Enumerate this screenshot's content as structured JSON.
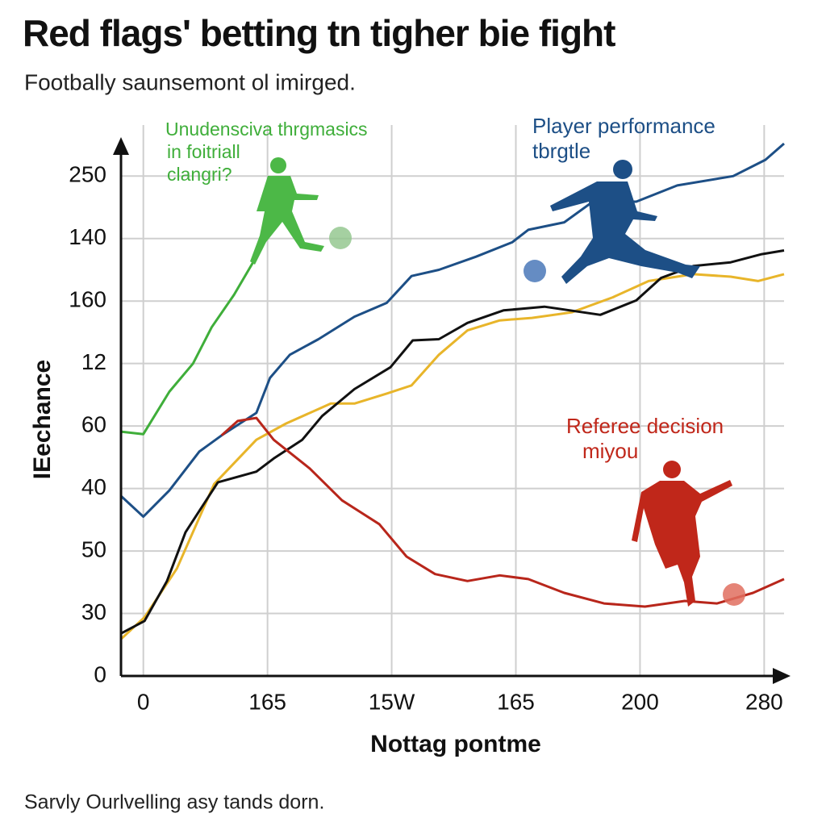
{
  "chart_data": {
    "type": "line",
    "title": "Red flags' betting tn tigher bie fight",
    "subtitle": "Footbally saunsemont ol imirged.",
    "y_label": "IEechance",
    "x_label": "Nottag pontme",
    "footer": "Sarvly Ourlvelling asy tands dorn.",
    "xlim": [
      -0.18,
      5.16
    ],
    "ylim": [
      0,
      8.52
    ],
    "xticks": [
      {
        "value": 0,
        "label": "0"
      },
      {
        "value": 1,
        "label": "165"
      },
      {
        "value": 2,
        "label": "15W"
      },
      {
        "value": 3,
        "label": "165"
      },
      {
        "value": 4,
        "label": "200"
      },
      {
        "value": 5,
        "label": "280"
      }
    ],
    "yticks": [
      {
        "value": 0,
        "label": "0"
      },
      {
        "value": 1,
        "label": "30"
      },
      {
        "value": 2,
        "label": "50"
      },
      {
        "value": 3,
        "label": "40"
      },
      {
        "value": 4,
        "label": "60"
      },
      {
        "value": 5,
        "label": "12"
      },
      {
        "value": 6,
        "label": "160"
      },
      {
        "value": 7,
        "label": "140"
      },
      {
        "value": 8,
        "label": "250"
      }
    ],
    "grid": true,
    "annotations": [
      {
        "lines": [
          "Unudenscivа thrgmasics",
          "in foitriall",
          "clangri?"
        ],
        "color": "#3fae3a"
      },
      {
        "lines": [
          "Player performance",
          "tbrgtle"
        ],
        "color": "#1d4f86"
      },
      {
        "lines": [
          "Referee decision",
          "miyou"
        ],
        "color": "#c0271a"
      }
    ],
    "series": [
      {
        "color": "#3fae3a",
        "x": [
          -0.18,
          0,
          0.21,
          0.4,
          0.55,
          0.73,
          0.91
        ],
        "values": [
          3.91,
          3.87,
          4.55,
          5.0,
          5.58,
          6.1,
          6.71
        ]
      },
      {
        "color": "#1d4f86",
        "x": [
          -0.18,
          0,
          0.21,
          0.45,
          0.63,
          0.91,
          1.02,
          1.18,
          1.41,
          1.7,
          1.96,
          2.16,
          2.38,
          2.68,
          2.97,
          3.1,
          3.39,
          3.62,
          3.97,
          4.3,
          4.75,
          5.01,
          5.16
        ],
        "values": [
          2.88,
          2.55,
          2.97,
          3.59,
          3.85,
          4.21,
          4.77,
          5.14,
          5.39,
          5.75,
          5.97,
          6.4,
          6.5,
          6.71,
          6.94,
          7.14,
          7.26,
          7.59,
          7.59,
          7.85,
          8.0,
          8.26,
          8.52
        ]
      },
      {
        "color": "#e8b52a",
        "x": [
          -0.18,
          0.01,
          0.27,
          0.57,
          0.91,
          1.15,
          1.51,
          1.7,
          1.96,
          2.16,
          2.38,
          2.61,
          2.87,
          3.13,
          3.45,
          3.78,
          4.07,
          4.43,
          4.73,
          4.95,
          5.16
        ],
        "values": [
          0.59,
          0.94,
          1.72,
          3.07,
          3.78,
          4.04,
          4.36,
          4.36,
          4.52,
          4.65,
          5.14,
          5.53,
          5.69,
          5.73,
          5.82,
          6.06,
          6.32,
          6.43,
          6.39,
          6.32,
          6.43
        ]
      },
      {
        "color": "#111111",
        "x": [
          -0.18,
          0.01,
          0.19,
          0.34,
          0.6,
          0.91,
          1.05,
          1.28,
          1.44,
          1.7,
          1.99,
          2.17,
          2.38,
          2.61,
          2.9,
          3.23,
          3.68,
          3.97,
          4.17,
          4.43,
          4.73,
          4.98,
          5.16
        ],
        "values": [
          0.68,
          0.88,
          1.52,
          2.3,
          3.1,
          3.27,
          3.48,
          3.78,
          4.16,
          4.59,
          4.94,
          5.37,
          5.39,
          5.65,
          5.85,
          5.91,
          5.78,
          6.01,
          6.37,
          6.56,
          6.62,
          6.75,
          6.81
        ]
      },
      {
        "color": "#b8261b",
        "x": [
          0.63,
          0.76,
          0.91,
          1.05,
          1.34,
          1.6,
          1.9,
          2.12,
          2.35,
          2.61,
          2.87,
          3.1,
          3.39,
          3.71,
          4.04,
          4.36,
          4.62,
          4.91,
          5.16
        ],
        "values": [
          3.85,
          4.08,
          4.13,
          3.78,
          3.32,
          2.81,
          2.43,
          1.91,
          1.63,
          1.52,
          1.61,
          1.55,
          1.33,
          1.16,
          1.11,
          1.2,
          1.16,
          1.33,
          1.55
        ]
      }
    ]
  }
}
